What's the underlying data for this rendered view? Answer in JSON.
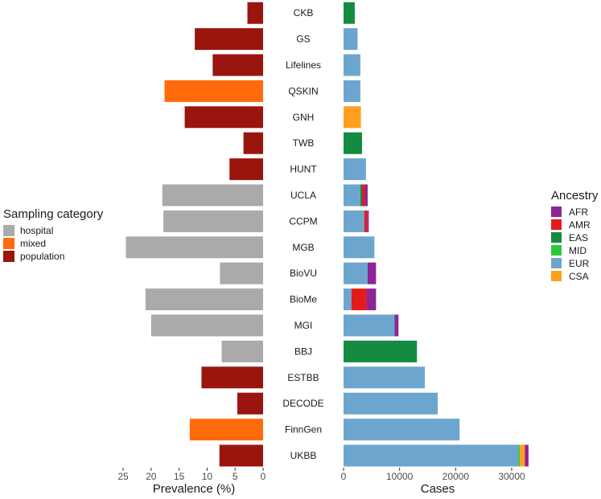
{
  "colors": {
    "hospital": "#AAAAAA",
    "mixed": "#FF6A0D",
    "population": "#9A150E",
    "AFR": "#8E2595",
    "AMR": "#E41B1C",
    "EAS": "#158B41",
    "MID": "#2FC83A",
    "EUR": "#6CA6CE",
    "CSA": "#FE9F1E"
  },
  "chart_data": [
    {
      "type": "bar",
      "orientation": "horizontal",
      "title": "",
      "xlabel": "Prevalence (%)",
      "ylabel": "",
      "xlim": [
        0,
        26
      ],
      "x_reversed": true,
      "xticks": [
        25,
        20,
        15,
        10,
        5,
        0
      ],
      "categories": [
        "CKB",
        "GS",
        "Lifelines",
        "QSKIN",
        "GNH",
        "TWB",
        "HUNT",
        "UCLA",
        "CCPM",
        "MGB",
        "BioVU",
        "BioMe",
        "MGI",
        "BBJ",
        "ESTBB",
        "DECODE",
        "FinnGen",
        "UKBB"
      ],
      "values": [
        2.8,
        12.2,
        9.0,
        17.6,
        14.0,
        3.5,
        6.0,
        18.0,
        17.8,
        24.5,
        7.7,
        21.0,
        20.0,
        7.4,
        11.0,
        4.6,
        13.1,
        7.8
      ],
      "sampling_category": [
        "population",
        "population",
        "population",
        "mixed",
        "population",
        "population",
        "population",
        "hospital",
        "hospital",
        "hospital",
        "hospital",
        "hospital",
        "hospital",
        "hospital",
        "population",
        "population",
        "mixed",
        "population"
      ],
      "legend": {
        "title": "Sampling category",
        "entries": [
          "hospital",
          "mixed",
          "population"
        ],
        "position": "left"
      }
    },
    {
      "type": "bar",
      "orientation": "horizontal",
      "stacked": true,
      "title": "",
      "xlabel": "Cases",
      "ylabel": "",
      "xlim": [
        0,
        35000
      ],
      "xticks": [
        0,
        10000,
        20000,
        30000
      ],
      "categories": [
        "CKB",
        "GS",
        "Lifelines",
        "QSKIN",
        "GNH",
        "TWB",
        "HUNT",
        "UCLA",
        "CCPM",
        "MGB",
        "BioVU",
        "BioMe",
        "MGI",
        "BBJ",
        "ESTBB",
        "DECODE",
        "FinnGen",
        "UKBB"
      ],
      "series": [
        {
          "name": "EUR",
          "values": [
            0,
            2500,
            3000,
            3000,
            0,
            0,
            4000,
            3000,
            3700,
            5500,
            4300,
            1400,
            9100,
            0,
            14500,
            16800,
            20700,
            31200
          ]
        },
        {
          "name": "EAS",
          "values": [
            2000,
            0,
            0,
            0,
            0,
            3300,
            0,
            300,
            0,
            0,
            0,
            0,
            0,
            13100,
            0,
            0,
            0,
            0
          ]
        },
        {
          "name": "MID",
          "values": [
            0,
            0,
            0,
            0,
            0,
            0,
            0,
            0,
            0,
            0,
            0,
            0,
            0,
            0,
            0,
            0,
            0,
            250
          ]
        },
        {
          "name": "AMR",
          "values": [
            0,
            0,
            0,
            0,
            0,
            0,
            0,
            500,
            500,
            0,
            0,
            2700,
            0,
            0,
            0,
            0,
            0,
            0
          ]
        },
        {
          "name": "CSA",
          "values": [
            0,
            0,
            0,
            0,
            3100,
            0,
            0,
            0,
            0,
            0,
            0,
            0,
            0,
            0,
            0,
            0,
            0,
            900
          ]
        },
        {
          "name": "AFR",
          "values": [
            0,
            0,
            0,
            0,
            0,
            0,
            0,
            500,
            300,
            0,
            1500,
            1700,
            700,
            0,
            0,
            0,
            0,
            650
          ]
        }
      ],
      "legend": {
        "title": "Ancestry",
        "entries": [
          "AFR",
          "AMR",
          "EAS",
          "MID",
          "EUR",
          "CSA"
        ],
        "position": "right"
      }
    }
  ]
}
